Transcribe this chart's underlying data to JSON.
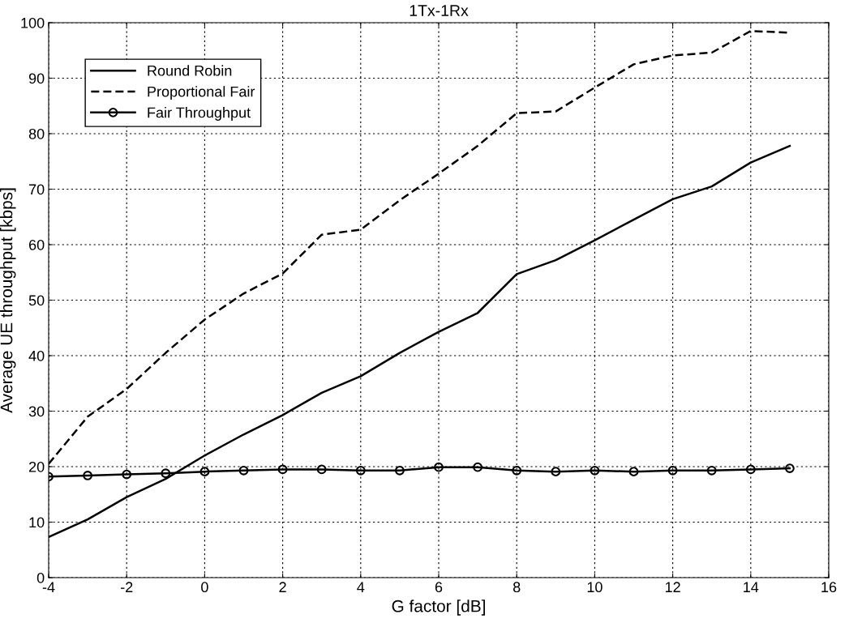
{
  "chart_data": {
    "type": "line",
    "title": "1Tx-1Rx",
    "xlabel": "G factor [dB]",
    "ylabel": "Average UE throughput [kbps]",
    "x": [
      -4,
      -3,
      -2,
      -1,
      0,
      1,
      2,
      3,
      4,
      5,
      6,
      7,
      8,
      9,
      10,
      11,
      12,
      13,
      14,
      15
    ],
    "series": [
      {
        "name": "Round Robin",
        "color": "#000000",
        "line_style": "solid",
        "marker": "none",
        "values": [
          7.3,
          10.5,
          14.5,
          17.8,
          22,
          25.8,
          29.3,
          33.3,
          36.3,
          40.5,
          44.3,
          47.7,
          54.7,
          57.2,
          60.8,
          64.5,
          68.2,
          70.5,
          74.8,
          77.8
        ]
      },
      {
        "name": "Proportional Fair",
        "color": "#000000",
        "line_style": "dashed",
        "marker": "none",
        "values": [
          20.5,
          29,
          34,
          40.5,
          46.5,
          51.2,
          54.8,
          61.8,
          62.7,
          68,
          72.8,
          77.8,
          83.7,
          84,
          88.3,
          92.5,
          94.1,
          94.6,
          98.5,
          98.2
        ]
      },
      {
        "name": "Fair Throughput",
        "color": "#000000",
        "line_style": "solid",
        "marker": "circle",
        "values": [
          18.2,
          18.4,
          18.6,
          18.8,
          19.1,
          19.3,
          19.5,
          19.5,
          19.3,
          19.3,
          19.9,
          19.9,
          19.3,
          19.1,
          19.3,
          19.1,
          19.3,
          19.3,
          19.5,
          19.7
        ]
      }
    ],
    "xlim": [
      -4,
      16
    ],
    "xticks": [
      -4,
      -2,
      0,
      2,
      4,
      6,
      8,
      10,
      12,
      14,
      16
    ],
    "ylim": [
      0,
      100
    ],
    "yticks": [
      0,
      10,
      20,
      30,
      40,
      50,
      60,
      70,
      80,
      90,
      100
    ],
    "grid": true,
    "legend": "top left"
  }
}
